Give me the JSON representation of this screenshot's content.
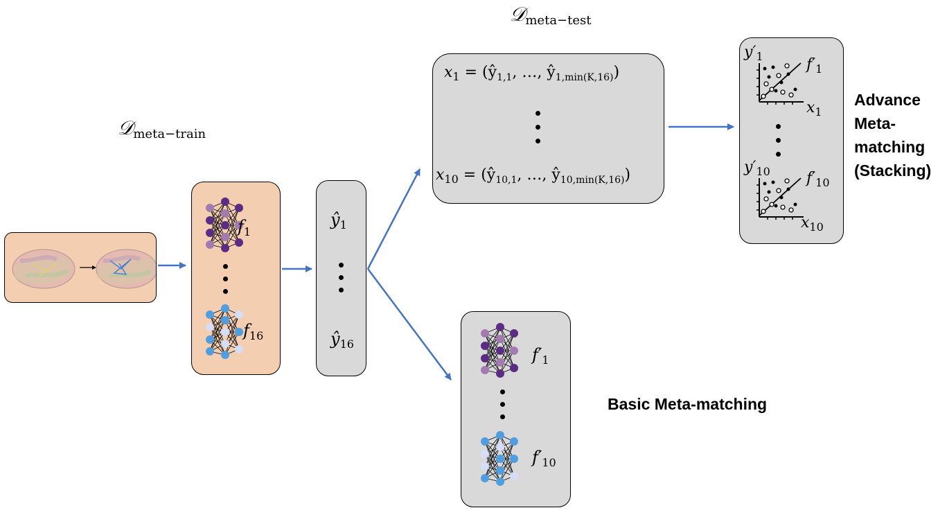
{
  "meta_train": {
    "script": "𝒟",
    "sub": "meta−train"
  },
  "meta_test": {
    "script": "𝒟",
    "sub": "meta−test"
  },
  "models": {
    "first": {
      "base": "f",
      "sub": "1"
    },
    "last": {
      "base": "f",
      "sub": "16"
    }
  },
  "predictions": {
    "first": {
      "base": "ŷ",
      "sub": "1"
    },
    "last": {
      "base": "ŷ",
      "sub": "16"
    }
  },
  "meta_test_features": {
    "first": {
      "lhs": "x",
      "lhs_sub": "1",
      "rhs": "= (ŷ",
      "rhs_sub1": "1,1",
      "mid": ", …, ŷ",
      "rhs_sub2": "1,min(K,16)",
      "close": ")"
    },
    "last": {
      "lhs": "x",
      "lhs_sub": "10",
      "rhs": "= (ŷ",
      "rhs_sub1": "10,1",
      "mid": ", …, ŷ",
      "rhs_sub2": "10,min(K,16)",
      "close": ")"
    }
  },
  "stacking": {
    "first": {
      "y": "y′",
      "y_sub": "1",
      "f": "f′",
      "f_sub": "1",
      "x": "x",
      "x_sub": "1"
    },
    "last": {
      "y": "y′",
      "y_sub": "10",
      "f": "f′",
      "f_sub": "10",
      "x": "x",
      "x_sub": "10"
    },
    "title_lines": [
      "Advance",
      "Meta-",
      "matching",
      "(Stacking)"
    ]
  },
  "basic": {
    "first": {
      "base": "f′",
      "sub": "1"
    },
    "last": {
      "base": "f′",
      "sub": "10"
    },
    "title": "Basic Meta-matching"
  },
  "colors": {
    "arrow": "#4472c4",
    "peach": "#f4ceb0",
    "gray": "#d9d9d9",
    "purple_dark": "#5b2c83",
    "purple_light": "#a37bb0",
    "blue": "#4f9ee0",
    "blue_light": "#d6def7"
  }
}
